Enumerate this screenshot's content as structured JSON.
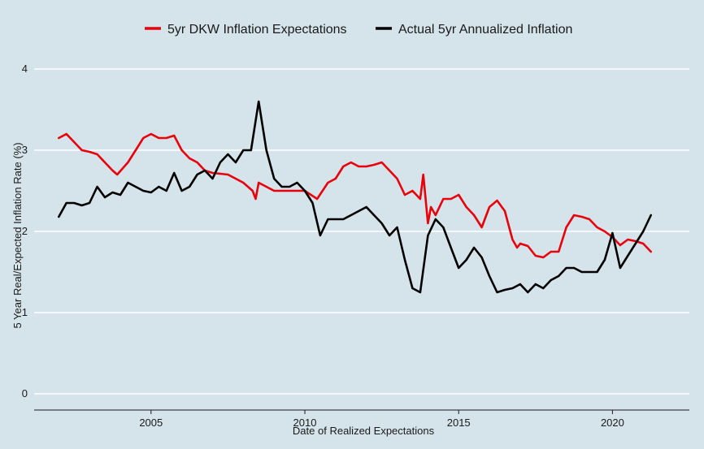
{
  "chart_data": {
    "type": "line",
    "xlabel": "Date of Realized Expectations",
    "ylabel": "5 Year Real/Expected Inflation Rate (%)",
    "xlim": [
      2001.2,
      2022.5
    ],
    "ylim": [
      -0.2,
      4.15
    ],
    "x_ticks": [
      2005,
      2010,
      2015,
      2020
    ],
    "y_ticks": [
      0,
      1,
      2,
      3,
      4
    ],
    "grid": "horizontal",
    "legend_position": "top",
    "colors": {
      "background": "#d5e3ea",
      "grid": "#ffffff",
      "axis": "#1a1a1a"
    },
    "series": [
      {
        "name": "5yr DKW Inflation Expectations",
        "color": "#e8000b",
        "x": [
          2002.0,
          2002.25,
          2002.5,
          2002.75,
          2003.0,
          2003.25,
          2003.5,
          2003.75,
          2003.9,
          2004.25,
          2004.5,
          2004.75,
          2005.0,
          2005.25,
          2005.5,
          2005.75,
          2006.0,
          2006.25,
          2006.5,
          2006.75,
          2007.0,
          2007.5,
          2008.0,
          2008.3,
          2008.4,
          2008.5,
          2008.75,
          2009.0,
          2009.5,
          2010.0,
          2010.4,
          2010.75,
          2011.0,
          2011.25,
          2011.5,
          2011.75,
          2012.0,
          2012.25,
          2012.5,
          2012.75,
          2013.0,
          2013.25,
          2013.5,
          2013.75,
          2013.85,
          2013.95,
          2014.0,
          2014.1,
          2014.25,
          2014.5,
          2014.75,
          2015.0,
          2015.25,
          2015.5,
          2015.75,
          2016.0,
          2016.25,
          2016.5,
          2016.75,
          2016.9,
          2017.0,
          2017.25,
          2017.5,
          2017.75,
          2018.0,
          2018.25,
          2018.5,
          2018.75,
          2019.0,
          2019.25,
          2019.5,
          2019.75,
          2020.0,
          2020.25,
          2020.5,
          2020.75,
          2021.0,
          2021.25
        ],
        "values": [
          3.15,
          3.2,
          3.1,
          3.0,
          2.98,
          2.95,
          2.85,
          2.75,
          2.7,
          2.85,
          3.0,
          3.15,
          3.2,
          3.15,
          3.15,
          3.18,
          3.0,
          2.9,
          2.85,
          2.75,
          2.72,
          2.7,
          2.6,
          2.5,
          2.4,
          2.6,
          2.55,
          2.5,
          2.5,
          2.5,
          2.4,
          2.6,
          2.65,
          2.8,
          2.85,
          2.8,
          2.8,
          2.82,
          2.85,
          2.75,
          2.65,
          2.45,
          2.5,
          2.4,
          2.7,
          2.3,
          2.1,
          2.3,
          2.2,
          2.4,
          2.4,
          2.45,
          2.3,
          2.2,
          2.05,
          2.3,
          2.38,
          2.25,
          1.9,
          1.8,
          1.85,
          1.82,
          1.7,
          1.68,
          1.75,
          1.75,
          2.05,
          2.2,
          2.18,
          2.15,
          2.05,
          2.0,
          1.93,
          1.83,
          1.9,
          1.88,
          1.85,
          1.75
        ]
      },
      {
        "name": "Actual 5yr Annualized Inflation",
        "color": "#000000",
        "x": [
          2002.0,
          2002.25,
          2002.5,
          2002.75,
          2003.0,
          2003.25,
          2003.5,
          2003.75,
          2004.0,
          2004.25,
          2004.5,
          2004.75,
          2005.0,
          2005.25,
          2005.5,
          2005.75,
          2006.0,
          2006.25,
          2006.5,
          2006.75,
          2007.0,
          2007.25,
          2007.5,
          2007.75,
          2008.0,
          2008.25,
          2008.5,
          2008.75,
          2009.0,
          2009.25,
          2009.5,
          2009.75,
          2010.0,
          2010.25,
          2010.5,
          2010.75,
          2011.0,
          2011.25,
          2011.5,
          2011.75,
          2012.0,
          2012.25,
          2012.5,
          2012.75,
          2013.0,
          2013.25,
          2013.5,
          2013.75,
          2014.0,
          2014.25,
          2014.5,
          2014.75,
          2015.0,
          2015.25,
          2015.5,
          2015.75,
          2016.0,
          2016.25,
          2016.5,
          2016.75,
          2017.0,
          2017.25,
          2017.5,
          2017.75,
          2018.0,
          2018.25,
          2018.5,
          2018.75,
          2019.0,
          2019.25,
          2019.5,
          2019.75,
          2020.0,
          2020.25,
          2020.5,
          2020.75,
          2021.0,
          2021.25
        ],
        "values": [
          2.18,
          2.35,
          2.35,
          2.32,
          2.35,
          2.55,
          2.42,
          2.48,
          2.45,
          2.6,
          2.55,
          2.5,
          2.48,
          2.55,
          2.5,
          2.72,
          2.5,
          2.55,
          2.7,
          2.75,
          2.65,
          2.85,
          2.95,
          2.85,
          3.0,
          3.0,
          3.6,
          3.0,
          2.65,
          2.55,
          2.55,
          2.6,
          2.5,
          2.35,
          1.95,
          2.15,
          2.15,
          2.15,
          2.2,
          2.25,
          2.3,
          2.2,
          2.1,
          1.95,
          2.05,
          1.65,
          1.3,
          1.25,
          1.95,
          2.15,
          2.05,
          1.8,
          1.55,
          1.65,
          1.8,
          1.68,
          1.45,
          1.25,
          1.28,
          1.3,
          1.35,
          1.25,
          1.35,
          1.3,
          1.4,
          1.45,
          1.55,
          1.55,
          1.5,
          1.5,
          1.5,
          1.65,
          1.98,
          1.55,
          1.7,
          1.85,
          2.0,
          2.2
        ]
      }
    ]
  }
}
